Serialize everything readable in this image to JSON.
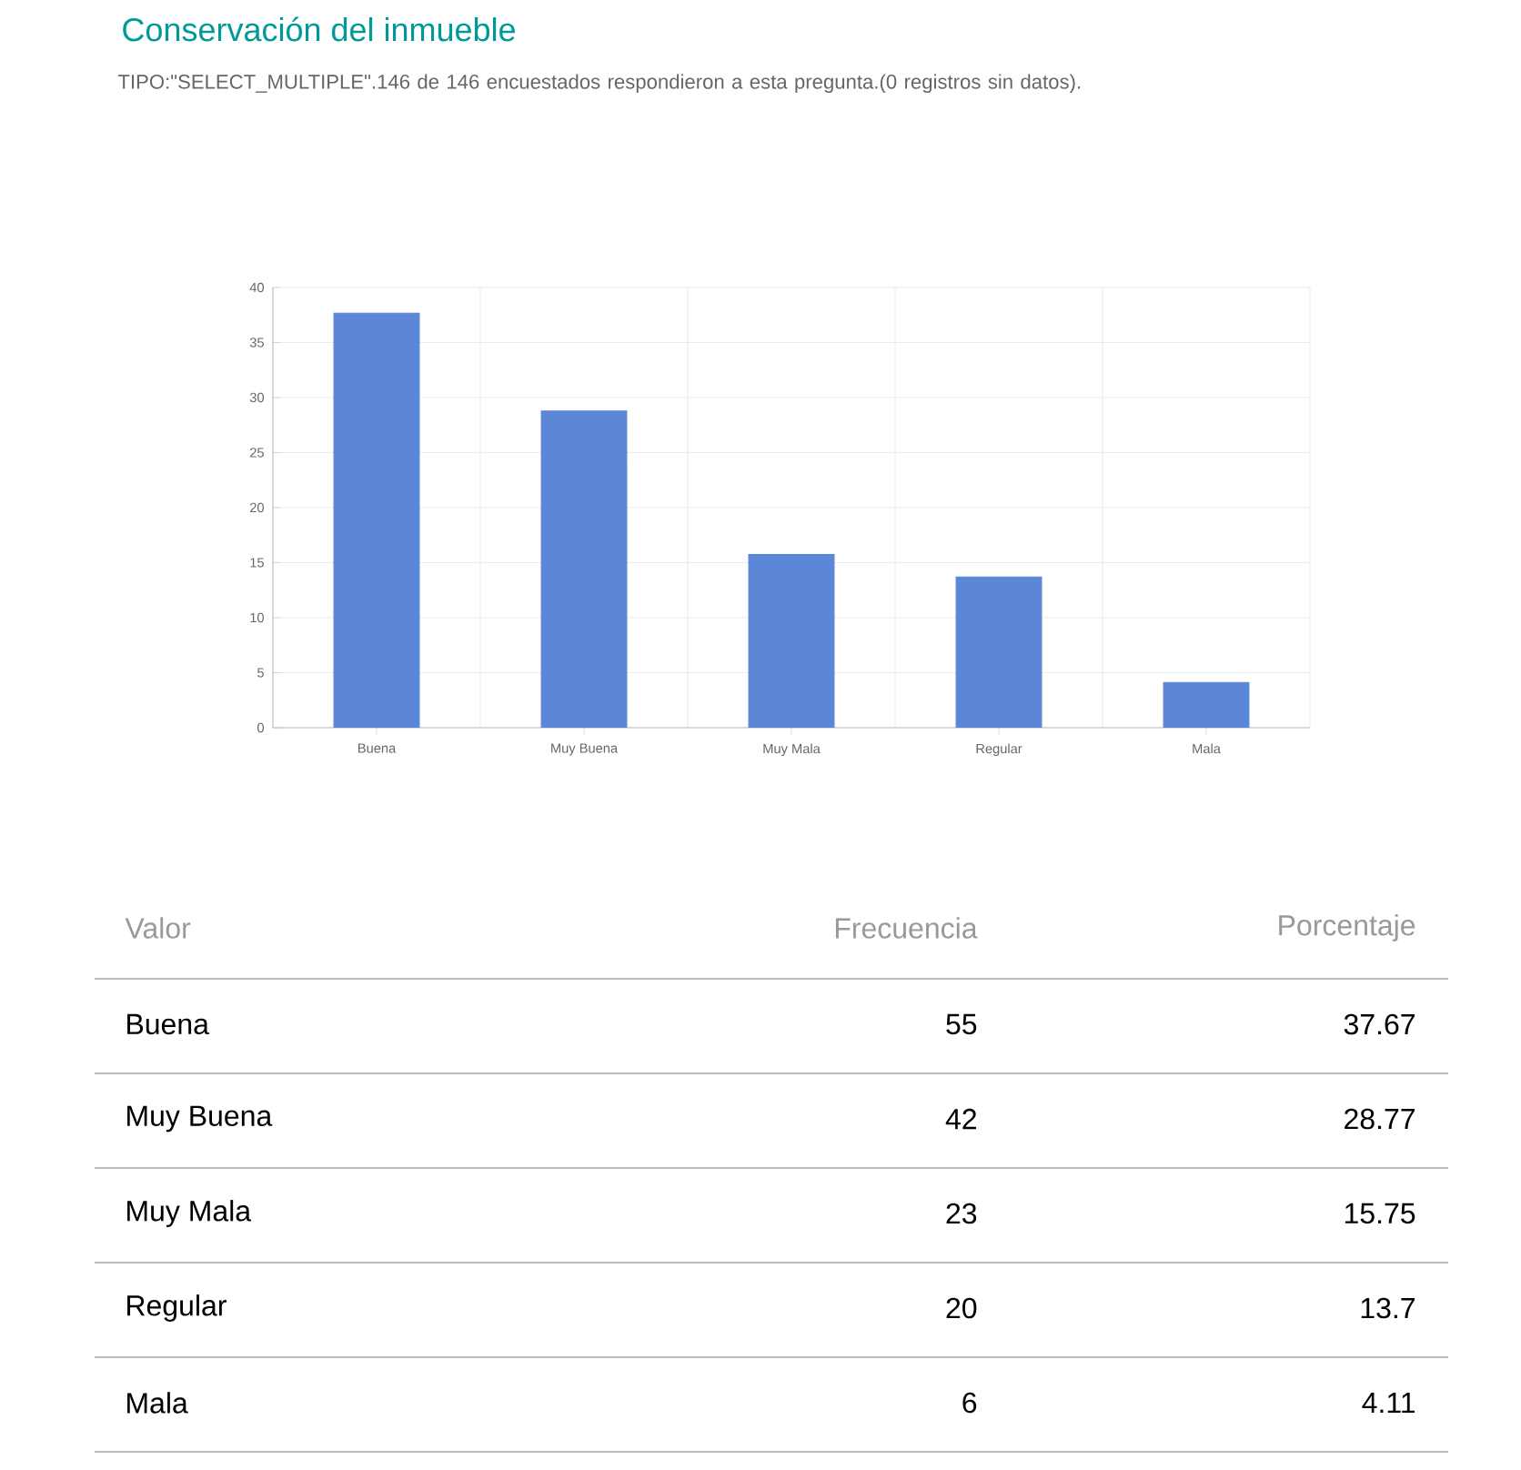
{
  "chart_data": {
    "type": "bar",
    "title": "Conservación del inmueble",
    "subtitle": "TIPO:\"SELECT_MULTIPLE\".146 de 146 encuestados respondieron a esta pregunta.(0 registros sin datos).",
    "categories": [
      "Buena",
      "Muy Buena",
      "Muy Mala",
      "Regular",
      "Mala"
    ],
    "values": [
      37.67,
      28.77,
      15.75,
      13.7,
      4.11
    ],
    "color": "#5b87d6",
    "ylim": [
      0,
      40
    ],
    "yticks": [
      0,
      5,
      10,
      15,
      20,
      25,
      30,
      35,
      40
    ],
    "grid": true,
    "annotations": [
      "Valor",
      "Frecuencia",
      "Porcentaje",
      "55",
      "42",
      "23",
      "20",
      "6",
      "37.67",
      "28.77",
      "15.75",
      "13.7",
      "4.11"
    ]
  }
}
